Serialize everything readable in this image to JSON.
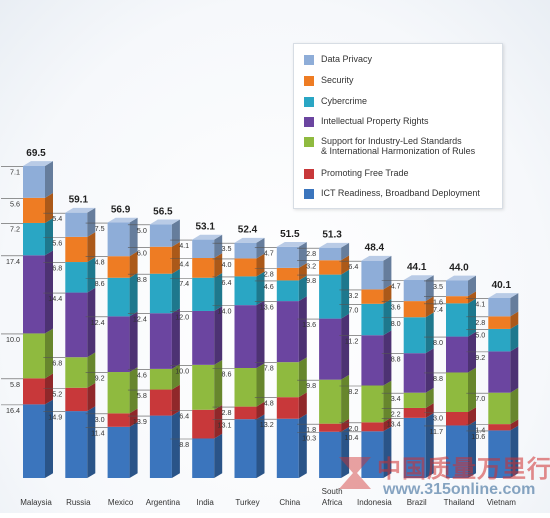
{
  "chart_data": {
    "type": "bar",
    "stacked": true,
    "categories": [
      "Malaysia",
      "Russia",
      "Mexico",
      "Argentina",
      "India",
      "Turkey",
      "China",
      "South Africa",
      "Indonesia",
      "Brazil",
      "Thailand",
      "Vietnam"
    ],
    "totals": [
      "69.5",
      "59.1",
      "56.9",
      "56.5",
      "53.1",
      "52.4",
      "51.5",
      "51.3",
      "48.4",
      "44.1",
      "44.0",
      "40.1"
    ],
    "series": [
      {
        "name": "ICT Readiness, Broadband Deployment",
        "color": "#3b75bd",
        "values": [
          16.4,
          14.9,
          11.4,
          13.9,
          8.8,
          13.1,
          13.2,
          10.3,
          10.4,
          13.4,
          11.7,
          10.6
        ]
      },
      {
        "name": "Promoting Free Trade",
        "color": "#c8383a",
        "values": [
          5.8,
          5.2,
          3.0,
          5.8,
          6.4,
          2.8,
          4.8,
          1.8,
          2.0,
          2.2,
          3.0,
          1.4
        ]
      },
      {
        "name": "Support for Industry-Led Standards\n& International Harmonization of Rules",
        "color": "#8fba3f",
        "values": [
          10.0,
          6.8,
          9.2,
          4.6,
          10.0,
          8.6,
          7.8,
          9.8,
          8.2,
          3.4,
          8.8,
          7.0
        ]
      },
      {
        "name": "Intellectual Property Rights",
        "color": "#6b45a0",
        "values": [
          17.4,
          14.4,
          12.4,
          12.4,
          12.0,
          14.0,
          13.6,
          13.6,
          11.2,
          8.8,
          8.0,
          9.2
        ]
      },
      {
        "name": "Cybercrime",
        "color": "#2aa6c4",
        "values": [
          7.2,
          6.8,
          8.6,
          8.8,
          7.4,
          6.4,
          4.6,
          9.8,
          7.0,
          8.0,
          7.4,
          5.0
        ]
      },
      {
        "name": "Security",
        "color": "#ee7c23",
        "values": [
          5.6,
          5.6,
          4.8,
          6.0,
          4.4,
          4.0,
          2.8,
          3.2,
          3.2,
          3.6,
          1.6,
          2.8
        ]
      },
      {
        "name": "Data Privacy",
        "color": "#8eadd8",
        "values": [
          7.1,
          5.4,
          7.5,
          5.0,
          4.1,
          3.5,
          4.7,
          2.8,
          6.4,
          4.7,
          3.5,
          4.1
        ]
      }
    ],
    "legend_position": "top-right",
    "ylim": [
      0,
      70
    ]
  },
  "watermark": {
    "text": "中国质量万里行",
    "url": "www.315online.com"
  }
}
